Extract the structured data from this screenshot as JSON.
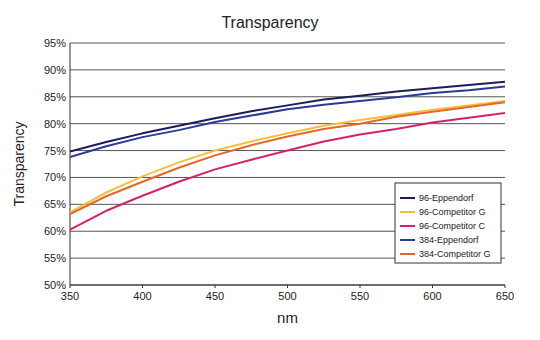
{
  "chart_data": {
    "type": "line",
    "title": "Transparency",
    "x_label": "nm",
    "y_label": "Transparency",
    "x": [
      350,
      375,
      400,
      425,
      450,
      475,
      500,
      525,
      550,
      575,
      600,
      625,
      650
    ],
    "series": [
      {
        "name": "96-Eppendorf",
        "color": "#1c1c5c",
        "values": [
          74.8,
          76.6,
          78.2,
          79.6,
          81.0,
          82.3,
          83.4,
          84.5,
          85.2,
          86.0,
          86.6,
          87.2,
          87.8
        ]
      },
      {
        "name": "96-Competitor G",
        "color": "#f2c13c",
        "values": [
          63.5,
          67.2,
          70.2,
          72.8,
          75.0,
          76.7,
          78.2,
          79.6,
          80.7,
          81.6,
          82.6,
          83.4,
          84.2
        ]
      },
      {
        "name": "96-Competitor C",
        "color": "#d42270",
        "values": [
          60.3,
          63.8,
          66.6,
          69.2,
          71.5,
          73.3,
          75.0,
          76.7,
          78.0,
          79.0,
          80.2,
          81.1,
          82.0
        ]
      },
      {
        "name": "384-Eppendorf",
        "color": "#2b3a96",
        "values": [
          73.8,
          75.8,
          77.5,
          78.8,
          80.3,
          81.5,
          82.7,
          83.5,
          84.2,
          84.9,
          85.7,
          86.2,
          86.9
        ]
      },
      {
        "name": "384-Competitor G",
        "color": "#e8652a",
        "values": [
          63.2,
          66.5,
          69.2,
          71.8,
          74.1,
          76.0,
          77.6,
          79.0,
          80.0,
          81.3,
          82.2,
          83.1,
          84.0
        ]
      }
    ],
    "xlim": [
      350,
      650
    ],
    "xticks": [
      350,
      400,
      450,
      500,
      550,
      600,
      650
    ],
    "ylim": [
      50,
      95
    ],
    "yticks": [
      {
        "value": 50,
        "label": "50%"
      },
      {
        "value": 55,
        "label": "55%"
      },
      {
        "value": 60,
        "label": "60%"
      },
      {
        "value": 65,
        "label": "65%"
      },
      {
        "value": 70,
        "label": "70%"
      },
      {
        "value": 75,
        "label": "75%"
      },
      {
        "value": 80,
        "label": "80%"
      },
      {
        "value": 85,
        "label": "85%"
      },
      {
        "value": 90,
        "label": "90%"
      },
      {
        "value": 95,
        "label": "95%"
      }
    ],
    "grid": true,
    "legend": "right"
  }
}
